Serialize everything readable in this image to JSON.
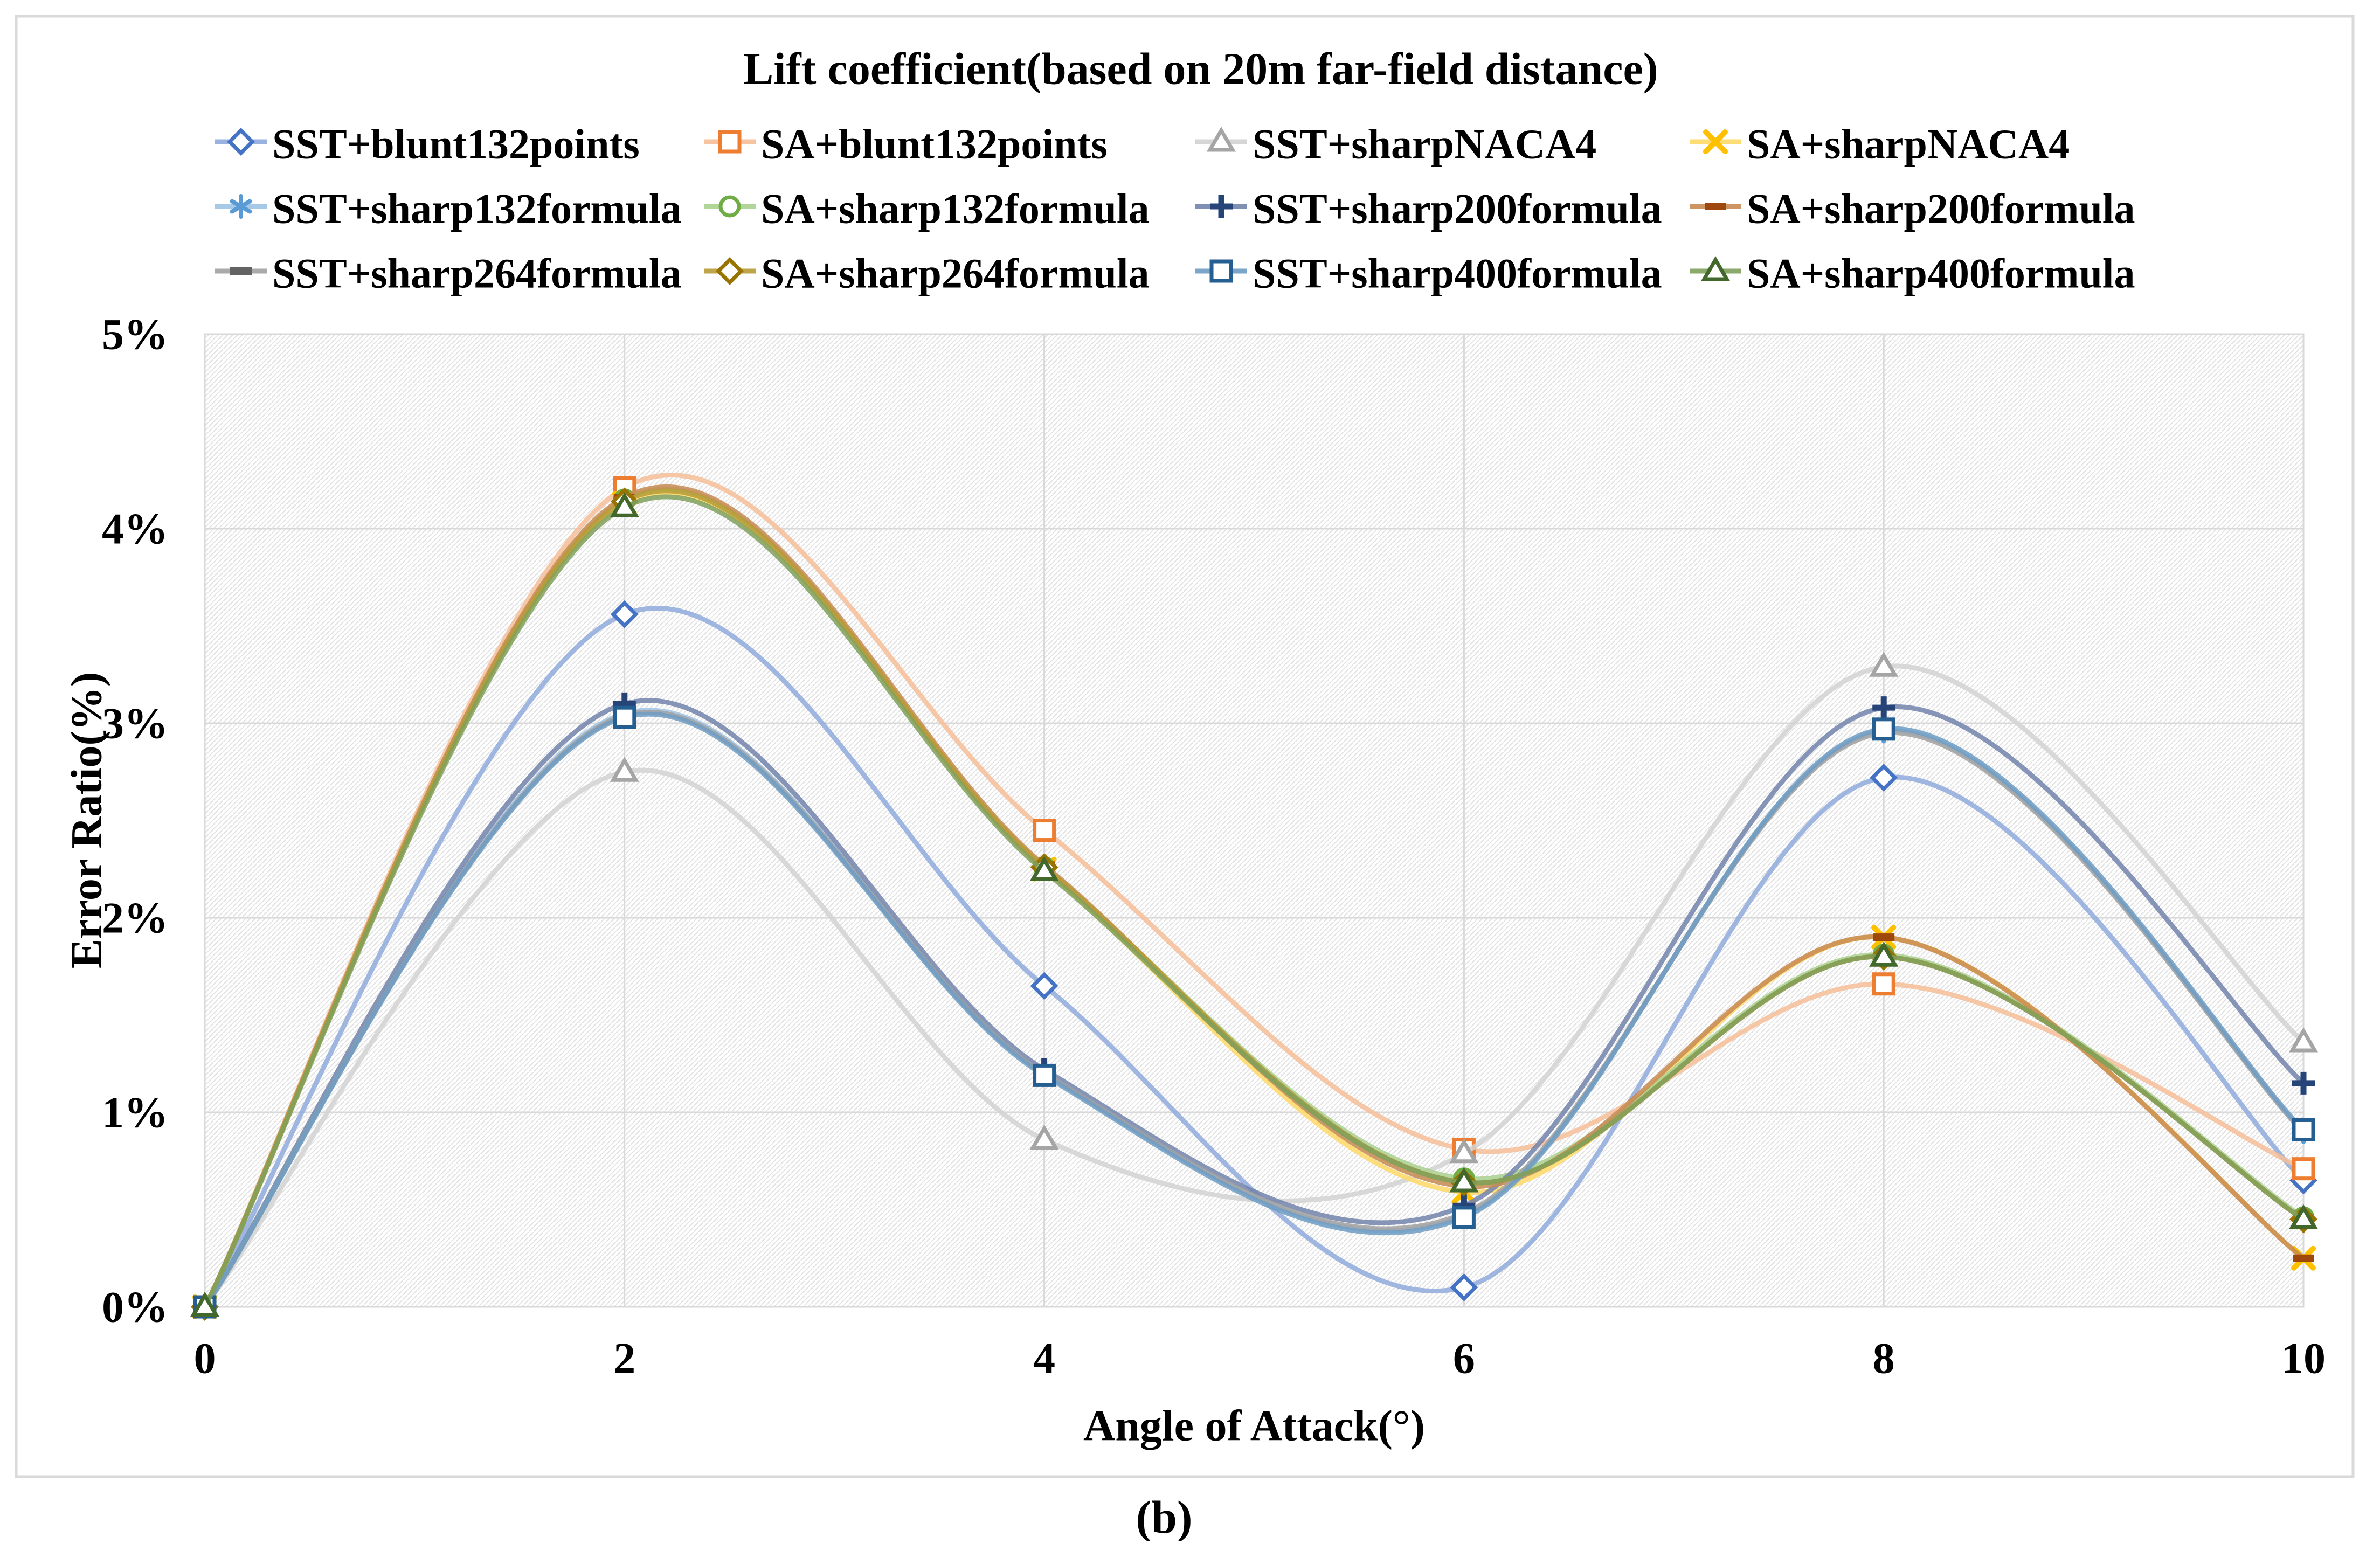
{
  "figure": {
    "caption": "(b)",
    "frame_color": "#d9d9d9",
    "hatch_color": "#e3e3e3",
    "grid_color": "#d9d9d9",
    "background": "#ffffff"
  },
  "chart_data": {
    "type": "line",
    "title": "Lift coefficient(based on 20m far-field distance)",
    "xlabel": "Angle of Attack(°)",
    "ylabel": "Error Ratio(%)",
    "x": [
      0,
      2,
      4,
      6,
      8,
      10
    ],
    "x_tick_labels": [
      "0",
      "2",
      "4",
      "6",
      "8",
      "10"
    ],
    "y_tick_labels": [
      "0%",
      "1%",
      "2%",
      "3%",
      "4%",
      "5%"
    ],
    "xlim": [
      0,
      10
    ],
    "ylim": [
      0,
      5
    ],
    "grid": true,
    "legend_position": "top",
    "smooth_lines": true,
    "series": [
      {
        "name": "SST+blunt132points",
        "marker": "diamond-open",
        "color": "#4472C4",
        "line_color": "#8FAADC",
        "values": [
          0,
          3.56,
          1.65,
          0.1,
          2.72,
          0.65
        ]
      },
      {
        "name": "SA+blunt132points",
        "marker": "square-open",
        "color": "#ED7D31",
        "line_color": "#F6BE98",
        "values": [
          0,
          4.21,
          2.45,
          0.81,
          1.66,
          0.71
        ]
      },
      {
        "name": "SST+sharpNACA4",
        "marker": "triangle-open",
        "color": "#A5A5A5",
        "line_color": "#D2D2D2",
        "values": [
          0,
          2.75,
          0.86,
          0.79,
          3.29,
          1.36
        ]
      },
      {
        "name": "SA+sharpNACA4",
        "marker": "x",
        "color": "#FFC000",
        "line_color": "#FFD966",
        "values": [
          0,
          4.13,
          2.25,
          0.59,
          1.9,
          0.25
        ]
      },
      {
        "name": "SST+sharp132formula",
        "marker": "asterisk",
        "color": "#5B9BD5",
        "line_color": "#9DC3E6",
        "values": [
          0,
          3.05,
          1.2,
          0.47,
          2.96,
          0.9
        ]
      },
      {
        "name": "SA+sharp132formula",
        "marker": "circle-open",
        "color": "#70AD47",
        "line_color": "#A9D18E",
        "values": [
          0,
          4.15,
          2.26,
          0.66,
          1.81,
          0.46
        ]
      },
      {
        "name": "SST+sharp200formula",
        "marker": "plus",
        "color": "#264478",
        "line_color": "#7284AC",
        "values": [
          0,
          3.1,
          1.22,
          0.52,
          3.08,
          1.15
        ]
      },
      {
        "name": "SA+sharp200formula",
        "marker": "dash",
        "color": "#9E480E",
        "line_color": "#C78A51",
        "values": [
          0,
          4.16,
          2.27,
          0.62,
          1.9,
          0.25
        ]
      },
      {
        "name": "SST+sharp264formula",
        "marker": "dash",
        "color": "#636363",
        "line_color": "#A1A1A1",
        "values": [
          0,
          3.04,
          1.2,
          0.48,
          2.95,
          0.9
        ]
      },
      {
        "name": "SA+sharp264formula",
        "marker": "diamond-open",
        "color": "#997300",
        "line_color": "#B89B35",
        "values": [
          0,
          4.14,
          2.26,
          0.64,
          1.8,
          0.45
        ]
      },
      {
        "name": "SST+sharp400formula",
        "marker": "square-open",
        "color": "#255E91",
        "line_color": "#6E9CC3",
        "values": [
          0,
          3.03,
          1.19,
          0.46,
          2.97,
          0.91
        ]
      },
      {
        "name": "SA+sharp400formula",
        "marker": "triangle-open",
        "color": "#43682B",
        "line_color": "#7FA05C",
        "values": [
          0,
          4.11,
          2.24,
          0.64,
          1.8,
          0.45
        ]
      }
    ]
  }
}
